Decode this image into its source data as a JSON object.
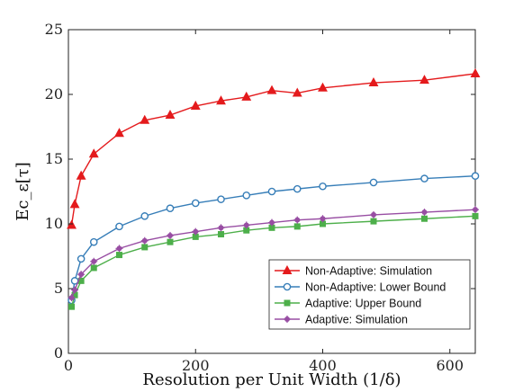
{
  "chart_data": {
    "type": "line",
    "xlabel": "Resolution per Unit Width (1/δ)",
    "ylabel": "Ec_ε[τ]",
    "xlim": [
      0,
      640
    ],
    "ylim": [
      0,
      25
    ],
    "xticks": [
      0,
      200,
      400,
      600
    ],
    "yticks": [
      0,
      5,
      10,
      15,
      20,
      25
    ],
    "grid": false,
    "legend_position": "bottom-right",
    "series": [
      {
        "name": "Non-Adaptive: Simulation",
        "color": "#e41a1c",
        "marker": "triangle",
        "x": [
          5,
          10,
          20,
          40,
          80,
          120,
          160,
          200,
          240,
          280,
          320,
          360,
          400,
          480,
          560,
          640
        ],
        "y": [
          9.9,
          11.5,
          13.7,
          15.4,
          17.0,
          18.0,
          18.4,
          19.1,
          19.5,
          19.8,
          20.3,
          20.1,
          20.5,
          20.9,
          21.1,
          21.6
        ]
      },
      {
        "name": "Non-Adaptive: Lower Bound",
        "color": "#377eb8",
        "marker": "circle",
        "x": [
          5,
          10,
          20,
          40,
          80,
          120,
          160,
          200,
          240,
          280,
          320,
          360,
          400,
          480,
          560,
          640
        ],
        "y": [
          4.1,
          5.6,
          7.3,
          8.6,
          9.8,
          10.6,
          11.2,
          11.6,
          11.9,
          12.2,
          12.5,
          12.7,
          12.9,
          13.2,
          13.5,
          13.7
        ]
      },
      {
        "name": "Adaptive: Upper Bound",
        "color": "#4daf4a",
        "marker": "square",
        "x": [
          5,
          10,
          20,
          40,
          80,
          120,
          160,
          200,
          240,
          280,
          320,
          360,
          400,
          480,
          560,
          640
        ],
        "y": [
          3.6,
          4.5,
          5.6,
          6.6,
          7.6,
          8.2,
          8.6,
          9.0,
          9.2,
          9.5,
          9.7,
          9.8,
          10.0,
          10.2,
          10.4,
          10.6
        ]
      },
      {
        "name": "Adaptive: Simulation",
        "color": "#984ea3",
        "marker": "asterisk",
        "x": [
          5,
          10,
          20,
          40,
          80,
          120,
          160,
          200,
          240,
          280,
          320,
          360,
          400,
          480,
          560,
          640
        ],
        "y": [
          4.3,
          4.9,
          6.1,
          7.1,
          8.1,
          8.7,
          9.1,
          9.4,
          9.7,
          9.9,
          10.1,
          10.3,
          10.4,
          10.7,
          10.9,
          11.1
        ]
      }
    ]
  }
}
